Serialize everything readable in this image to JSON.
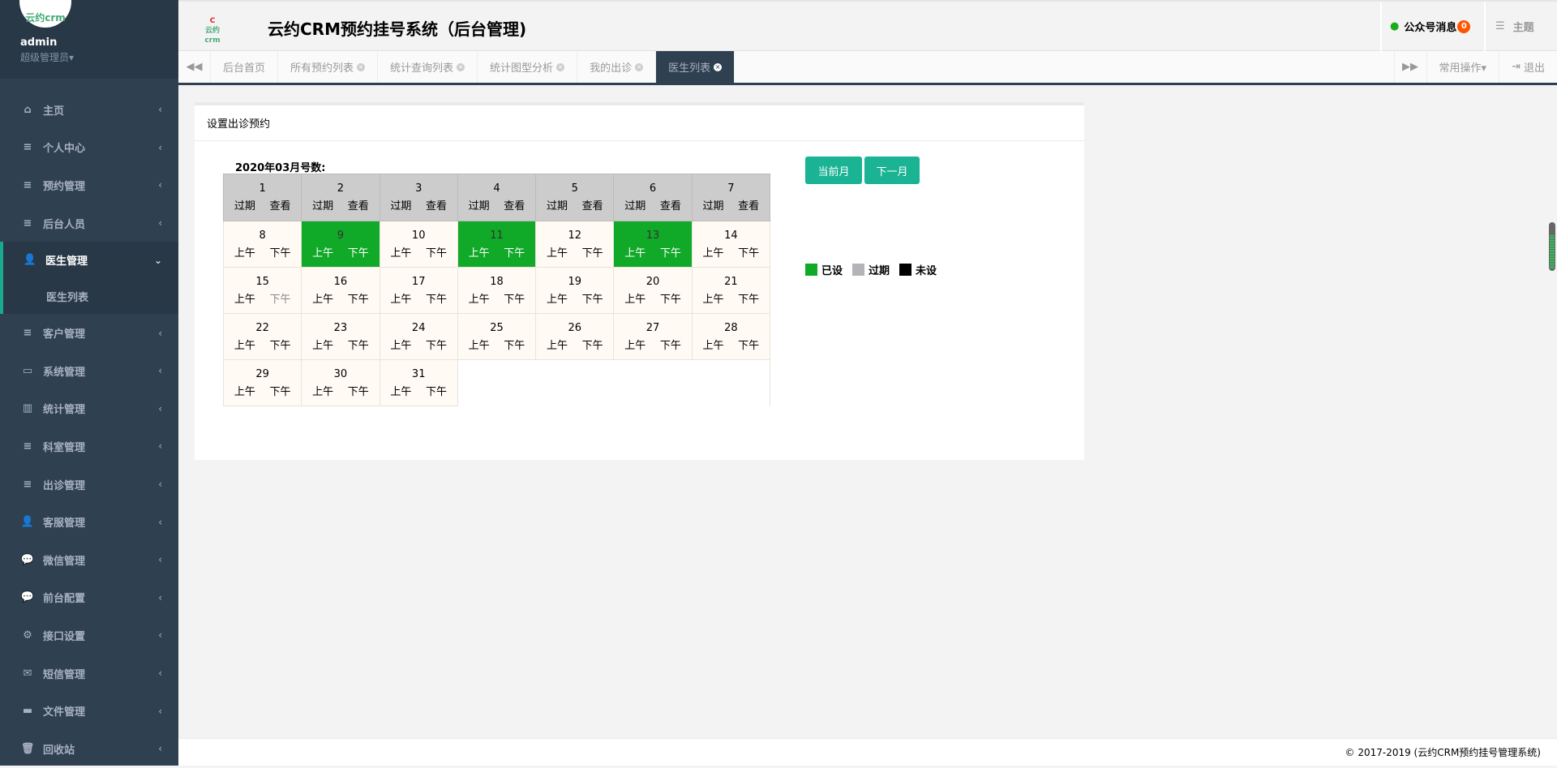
{
  "user": {
    "name": "admin",
    "role": "超级管理员▾",
    "avatar_text_1": "C",
    "avatar_text_2": "云约crm"
  },
  "sidebar": {
    "items": [
      {
        "label": "主页",
        "icon": "home-icon",
        "glyph": "⌂"
      },
      {
        "label": "个人中心",
        "icon": "list-icon",
        "glyph": "≡"
      },
      {
        "label": "预约管理",
        "icon": "list-icon",
        "glyph": "≡"
      },
      {
        "label": "后台人员",
        "icon": "list-icon",
        "glyph": "≡"
      },
      {
        "label": "医生管理",
        "icon": "user-plus-icon",
        "glyph": "👤",
        "expanded": true,
        "sub": [
          "医生列表"
        ]
      },
      {
        "label": "客户管理",
        "icon": "list-icon",
        "glyph": "≡"
      },
      {
        "label": "系统管理",
        "icon": "desktop-icon",
        "glyph": "▭"
      },
      {
        "label": "统计管理",
        "icon": "bar-chart-icon",
        "glyph": "▥"
      },
      {
        "label": "科室管理",
        "icon": "list-icon",
        "glyph": "≡"
      },
      {
        "label": "出诊管理",
        "icon": "list-icon",
        "glyph": "≡"
      },
      {
        "label": "客服管理",
        "icon": "user-plus-icon",
        "glyph": "👤"
      },
      {
        "label": "微信管理",
        "icon": "wechat-icon",
        "glyph": "💬"
      },
      {
        "label": "前台配置",
        "icon": "wechat-icon",
        "glyph": "💬"
      },
      {
        "label": "接口设置",
        "icon": "gear-icon",
        "glyph": "⚙"
      },
      {
        "label": "短信管理",
        "icon": "envelope-icon",
        "glyph": "✉"
      },
      {
        "label": "文件管理",
        "icon": "folder-icon",
        "glyph": "▬"
      },
      {
        "label": "回收站",
        "icon": "trash-icon",
        "glyph": "🗑"
      }
    ]
  },
  "header": {
    "title": "云约CRM预约挂号系统（后台管理)",
    "logo_text": "云约crm",
    "messages_label": "公众号消息",
    "messages_count": "0",
    "theme_label": "主题"
  },
  "tabs": {
    "items": [
      "后台首页",
      "所有预约列表",
      "统计查询列表",
      "统计图型分析",
      "我的出诊",
      "医生列表"
    ],
    "active": "医生列表",
    "common_ops": "常用操作▾",
    "logout": "退出"
  },
  "panel": {
    "title": "设置出诊预约",
    "calendar_title": "2020年03月号数:",
    "btn_current": "当前月",
    "btn_next": "下一月"
  },
  "legend": [
    {
      "label": "已设",
      "color": "#11a928"
    },
    {
      "label": "过期",
      "color": "#b3b3b8"
    },
    {
      "label": "未设",
      "color": "#000000"
    }
  ],
  "calendar": {
    "expired_labels": [
      "过期",
      "查看"
    ],
    "slot_labels": [
      "上午",
      "下午"
    ],
    "days": [
      1,
      2,
      3,
      4,
      5,
      6,
      7,
      8,
      9,
      10,
      11,
      12,
      13,
      14,
      15,
      16,
      17,
      18,
      19,
      20,
      21,
      22,
      23,
      24,
      25,
      26,
      27,
      28,
      29,
      30,
      31
    ],
    "expired_days": [
      1,
      2,
      3,
      4,
      5,
      6,
      7
    ],
    "set_days": [
      9,
      11,
      13
    ],
    "muted_pm_days": [
      15
    ]
  },
  "colors": {
    "sidebar": "#2f4050",
    "accent": "#1ab394",
    "set": "#11a928"
  },
  "footer": "© 2017-2019 (云约CRM预约挂号管理系统)"
}
